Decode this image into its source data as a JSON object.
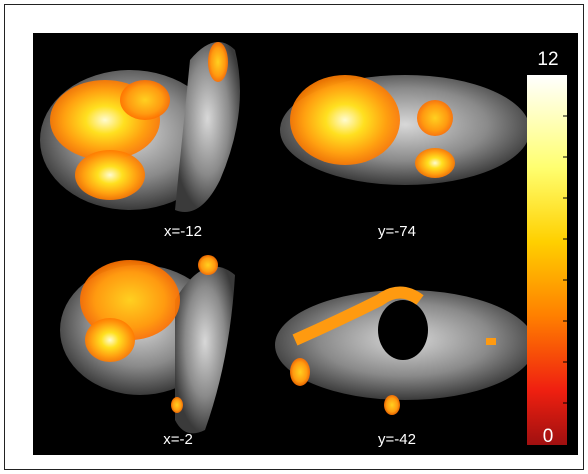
{
  "panels": [
    {
      "label": "x=-12"
    },
    {
      "label": "y=-74"
    },
    {
      "label": "x=-2"
    },
    {
      "label": "y=-42"
    }
  ],
  "colorbar": {
    "min": 0,
    "max": 12
  }
}
